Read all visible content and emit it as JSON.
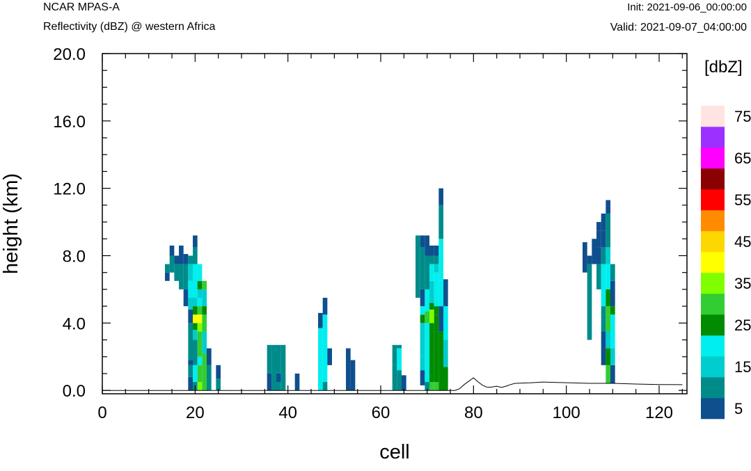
{
  "header": {
    "left_top": "NCAR MPAS-A",
    "left_sub": "Reflectivity (dBZ) @ western Africa",
    "right_top": "Init: 2021-09-06_00:00:00",
    "right_sub": "Valid: 2021-09-07_04:00:00"
  },
  "chart_data": {
    "type": "heatmap",
    "title": "Reflectivity (dBZ) @ western Africa",
    "xlabel": "cell",
    "ylabel": "height (km)",
    "xlim": [
      0,
      126
    ],
    "ylim": [
      -0.2,
      20
    ],
    "x_ticks": [
      0,
      20,
      40,
      60,
      80,
      100,
      120
    ],
    "x_tick_labels": [
      "0",
      "20",
      "40",
      "60",
      "80",
      "100",
      "120"
    ],
    "y_ticks": [
      0,
      4,
      8,
      12,
      16,
      20
    ],
    "y_tick_labels": [
      "0.0",
      "4.0",
      "8.0",
      "12.0",
      "16.0",
      "20.0"
    ],
    "grid": false,
    "colorbar": {
      "unit_label": "[dbZ]",
      "levels": [
        5,
        10,
        15,
        20,
        25,
        30,
        35,
        40,
        45,
        50,
        55,
        60,
        65,
        70,
        75
      ],
      "labels": [
        "5",
        "15",
        "25",
        "35",
        "45",
        "55",
        "65",
        "75"
      ],
      "colors": [
        "#0f4f8e",
        "#008b8b",
        "#00cdcd",
        "#00eeee",
        "#008b00",
        "#32cd32",
        "#7fff00",
        "#ffff00",
        "#ffd700",
        "#ff8c00",
        "#ff0000",
        "#8b0000",
        "#ff00ff",
        "#9b30ff",
        "#ffe4e1"
      ]
    },
    "terrain_km": [
      [
        0,
        0
      ],
      [
        76,
        0
      ],
      [
        77,
        0.1
      ],
      [
        78,
        0.35
      ],
      [
        79,
        0.55
      ],
      [
        80,
        0.75
      ],
      [
        81,
        0.5
      ],
      [
        82,
        0.3
      ],
      [
        83,
        0.18
      ],
      [
        84,
        0.2
      ],
      [
        85,
        0.25
      ],
      [
        86,
        0.18
      ],
      [
        87,
        0.25
      ],
      [
        88,
        0.35
      ],
      [
        89,
        0.42
      ],
      [
        92,
        0.45
      ],
      [
        95,
        0.5
      ],
      [
        98,
        0.47
      ],
      [
        101,
        0.45
      ],
      [
        105,
        0.42
      ],
      [
        110,
        0.42
      ],
      [
        115,
        0.38
      ],
      [
        120,
        0.35
      ],
      [
        125,
        0.34
      ]
    ],
    "columns": [
      {
        "cell": 14,
        "cells": [
          [
            6.5,
            7.0,
            5
          ],
          [
            7.0,
            7.5,
            10
          ]
        ]
      },
      {
        "cell": 15,
        "cells": [
          [
            7.0,
            8.0,
            10
          ],
          [
            8.0,
            8.6,
            5
          ]
        ]
      },
      {
        "cell": 16,
        "cells": [
          [
            6.5,
            7.5,
            10
          ],
          [
            7.5,
            8.0,
            5
          ]
        ]
      },
      {
        "cell": 17,
        "cells": [
          [
            6.0,
            7.5,
            10
          ],
          [
            7.5,
            8.6,
            5
          ]
        ]
      },
      {
        "cell": 18,
        "cells": [
          [
            5.0,
            6.0,
            5
          ],
          [
            6.0,
            7.5,
            10
          ],
          [
            7.5,
            8.1,
            5
          ]
        ]
      },
      {
        "cell": 19,
        "cells": [
          [
            0.0,
            0.8,
            5
          ],
          [
            0.8,
            1.5,
            10
          ],
          [
            1.5,
            1.8,
            5
          ],
          [
            1.8,
            4.0,
            10
          ],
          [
            4.0,
            4.8,
            5
          ],
          [
            4.8,
            5.5,
            15
          ],
          [
            5.5,
            6.5,
            20
          ],
          [
            6.5,
            7.5,
            15
          ],
          [
            7.5,
            8.0,
            10
          ]
        ]
      },
      {
        "cell": 20,
        "cells": [
          [
            0.0,
            0.5,
            10
          ],
          [
            0.5,
            1.5,
            20
          ],
          [
            1.5,
            3.0,
            10
          ],
          [
            3.0,
            3.6,
            15
          ],
          [
            3.6,
            4.0,
            25
          ],
          [
            4.0,
            4.5,
            40
          ],
          [
            4.5,
            5.0,
            25
          ],
          [
            5.0,
            5.5,
            15
          ],
          [
            5.5,
            7.5,
            20
          ],
          [
            7.5,
            8.5,
            10
          ],
          [
            8.5,
            9.2,
            5
          ]
        ]
      },
      {
        "cell": 21,
        "cells": [
          [
            0.0,
            0.5,
            35
          ],
          [
            0.5,
            1.5,
            30
          ],
          [
            1.5,
            2.0,
            20
          ],
          [
            2.0,
            3.5,
            30
          ],
          [
            3.5,
            4.0,
            35
          ],
          [
            4.0,
            4.5,
            40
          ],
          [
            4.5,
            5.0,
            30
          ],
          [
            5.0,
            5.5,
            20
          ],
          [
            5.5,
            6.0,
            15
          ],
          [
            6.0,
            6.5,
            25
          ],
          [
            6.5,
            7.5,
            20
          ]
        ]
      },
      {
        "cell": 22,
        "cells": [
          [
            0.0,
            2.2,
            30
          ],
          [
            2.2,
            3.5,
            15
          ],
          [
            3.5,
            4.5,
            30
          ],
          [
            4.5,
            5.0,
            25
          ],
          [
            5.0,
            6.0,
            15
          ],
          [
            6.0,
            6.5,
            30
          ]
        ]
      },
      {
        "cell": 23,
        "cells": [
          [
            0.0,
            1.5,
            10
          ],
          [
            1.5,
            2.5,
            5
          ]
        ]
      },
      {
        "cell": 25,
        "cells": [
          [
            0.0,
            0.7,
            10
          ],
          [
            0.7,
            1.5,
            5
          ]
        ]
      },
      {
        "cell": 36,
        "cells": [
          [
            0.0,
            1.0,
            5
          ],
          [
            1.0,
            2.7,
            10
          ]
        ]
      },
      {
        "cell": 37,
        "cells": [
          [
            0.0,
            2.7,
            10
          ]
        ]
      },
      {
        "cell": 38,
        "cells": [
          [
            0.0,
            0.5,
            10
          ],
          [
            0.5,
            1.0,
            5
          ],
          [
            1.0,
            2.7,
            10
          ]
        ]
      },
      {
        "cell": 39,
        "cells": [
          [
            0.0,
            1.0,
            10
          ],
          [
            1.0,
            2.7,
            10
          ]
        ]
      },
      {
        "cell": 42,
        "cells": [
          [
            0.0,
            1.0,
            5
          ]
        ]
      },
      {
        "cell": 47,
        "cells": [
          [
            0.0,
            3.7,
            20
          ],
          [
            3.7,
            4.6,
            5
          ]
        ]
      },
      {
        "cell": 48,
        "cells": [
          [
            0.0,
            0.5,
            10
          ],
          [
            0.5,
            4.5,
            20
          ],
          [
            4.5,
            5.5,
            5
          ]
        ]
      },
      {
        "cell": 49,
        "cells": [
          [
            1.5,
            2.5,
            5
          ]
        ]
      },
      {
        "cell": 53,
        "cells": [
          [
            0.0,
            2.5,
            5
          ]
        ]
      },
      {
        "cell": 54,
        "cells": [
          [
            0.0,
            1.8,
            5
          ]
        ]
      },
      {
        "cell": 63,
        "cells": [
          [
            0.0,
            1.5,
            10
          ],
          [
            1.5,
            2.7,
            10
          ]
        ]
      },
      {
        "cell": 64,
        "cells": [
          [
            0.0,
            1.2,
            10
          ],
          [
            1.2,
            2.5,
            20
          ],
          [
            2.5,
            2.7,
            10
          ]
        ]
      },
      {
        "cell": 65,
        "cells": [
          [
            0.0,
            0.9,
            5
          ]
        ]
      },
      {
        "cell": 68,
        "cells": [
          [
            5.5,
            9.2,
            10
          ]
        ]
      },
      {
        "cell": 69,
        "cells": [
          [
            0.3,
            1.2,
            5
          ],
          [
            1.2,
            2.0,
            15
          ],
          [
            2.0,
            4.0,
            15
          ],
          [
            4.0,
            4.5,
            25
          ],
          [
            4.5,
            5.0,
            20
          ],
          [
            5.0,
            6.0,
            5
          ],
          [
            6.0,
            8.5,
            10
          ],
          [
            8.5,
            9.2,
            5
          ]
        ]
      },
      {
        "cell": 70,
        "cells": [
          [
            0.0,
            0.5,
            10
          ],
          [
            0.5,
            4.0,
            20
          ],
          [
            4.0,
            4.7,
            30
          ],
          [
            4.7,
            6.0,
            20
          ],
          [
            6.0,
            8.0,
            10
          ],
          [
            8.0,
            9.2,
            5
          ]
        ]
      },
      {
        "cell": 71,
        "cells": [
          [
            0.0,
            0.5,
            30
          ],
          [
            0.5,
            3.5,
            25
          ],
          [
            3.5,
            4.0,
            25
          ],
          [
            4.0,
            4.8,
            35
          ],
          [
            4.8,
            5.2,
            25
          ],
          [
            5.2,
            6.5,
            15
          ],
          [
            6.5,
            7.5,
            20
          ],
          [
            7.5,
            8.0,
            10
          ],
          [
            8.0,
            8.6,
            5
          ]
        ]
      },
      {
        "cell": 72,
        "cells": [
          [
            0.0,
            0.5,
            30
          ],
          [
            0.5,
            3.5,
            25
          ],
          [
            3.5,
            4.5,
            25
          ],
          [
            4.5,
            5.0,
            25
          ],
          [
            5.0,
            7.0,
            20
          ],
          [
            7.0,
            7.5,
            15
          ],
          [
            7.5,
            8.0,
            10
          ],
          [
            8.0,
            8.6,
            5
          ]
        ]
      },
      {
        "cell": 73,
        "cells": [
          [
            0.0,
            3.5,
            25
          ],
          [
            3.5,
            5.0,
            5
          ],
          [
            5.0,
            6.5,
            20
          ],
          [
            6.5,
            9.0,
            20
          ],
          [
            9.0,
            11.0,
            10
          ],
          [
            11.0,
            12.0,
            5
          ]
        ]
      },
      {
        "cell": 74,
        "cells": [
          [
            0.0,
            1.4,
            25
          ],
          [
            1.4,
            3.0,
            15
          ],
          [
            3.0,
            5.0,
            20
          ],
          [
            5.0,
            6.6,
            5
          ]
        ]
      },
      {
        "cell": 104,
        "cells": [
          [
            7.0,
            8.8,
            5
          ]
        ]
      },
      {
        "cell": 105,
        "cells": [
          [
            3.0,
            7.5,
            10
          ],
          [
            7.5,
            8.0,
            5
          ]
        ]
      },
      {
        "cell": 106,
        "cells": [
          [
            7.5,
            9.0,
            5
          ]
        ]
      },
      {
        "cell": 107,
        "cells": [
          [
            6.0,
            7.5,
            10
          ],
          [
            7.5,
            8.5,
            5
          ],
          [
            8.5,
            9.5,
            5
          ],
          [
            9.5,
            10.0,
            5
          ]
        ]
      },
      {
        "cell": 108,
        "cells": [
          [
            1.5,
            3.5,
            5
          ],
          [
            3.5,
            5.0,
            10
          ],
          [
            5.0,
            7.5,
            20
          ],
          [
            7.5,
            8.5,
            10
          ],
          [
            8.5,
            9.5,
            5
          ],
          [
            9.5,
            10.5,
            5
          ]
        ]
      },
      {
        "cell": 109,
        "cells": [
          [
            0.4,
            1.5,
            30
          ],
          [
            1.5,
            2.5,
            25
          ],
          [
            2.5,
            3.5,
            15
          ],
          [
            3.5,
            4.5,
            30
          ],
          [
            4.5,
            5.0,
            30
          ],
          [
            5.0,
            6.0,
            25
          ],
          [
            6.0,
            7.5,
            20
          ],
          [
            7.5,
            8.5,
            15
          ],
          [
            8.5,
            10.5,
            10
          ],
          [
            10.5,
            11.3,
            5
          ]
        ]
      },
      {
        "cell": 110,
        "cells": [
          [
            0.4,
            1.5,
            5
          ],
          [
            1.5,
            2.5,
            15
          ],
          [
            2.5,
            4.5,
            20
          ],
          [
            4.5,
            5.0,
            25
          ],
          [
            5.0,
            6.5,
            5
          ],
          [
            6.5,
            7.5,
            10
          ]
        ]
      }
    ]
  }
}
